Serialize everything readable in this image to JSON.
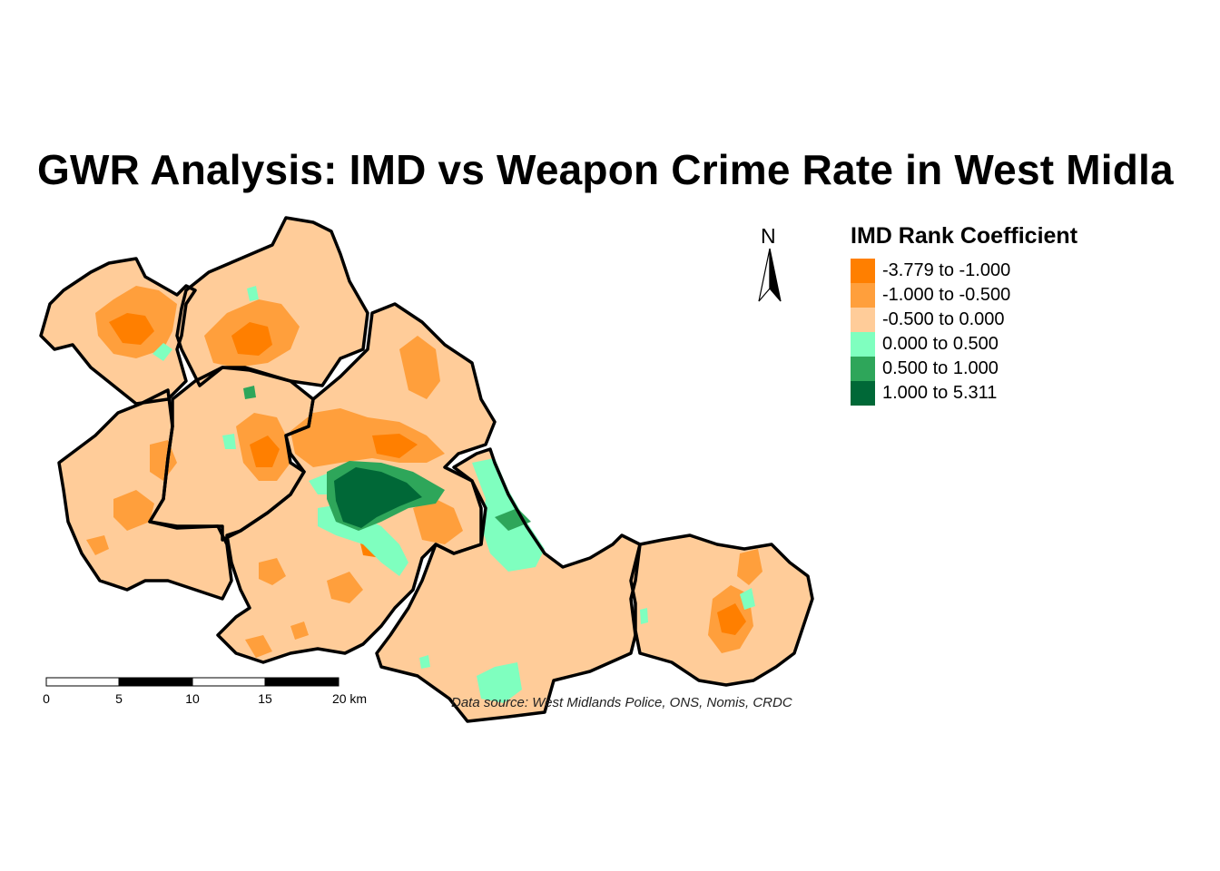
{
  "title": "GWR Analysis: IMD vs Weapon Crime Rate in West Midla",
  "legend": {
    "title": "IMD Rank Coefficient",
    "items": [
      {
        "label": "-3.779 to -1.000",
        "color": "#ff7f00"
      },
      {
        "label": "-1.000 to -0.500",
        "color": "#ff9f3c"
      },
      {
        "label": "-0.500 to 0.000",
        "color": "#ffcc99"
      },
      {
        "label": "0.000 to 0.500",
        "color": "#7fffbf"
      },
      {
        "label": "0.500 to 1.000",
        "color": "#2ea65a"
      },
      {
        "label": "1.000 to 5.311",
        "color": "#006837"
      }
    ]
  },
  "north_arrow": {
    "label": "N"
  },
  "scale_bar": {
    "ticks": [
      "0",
      "5",
      "10",
      "15",
      "20 km"
    ]
  },
  "source": "Data source: West Midlands Police, ONS, Nomis, CRDC"
}
